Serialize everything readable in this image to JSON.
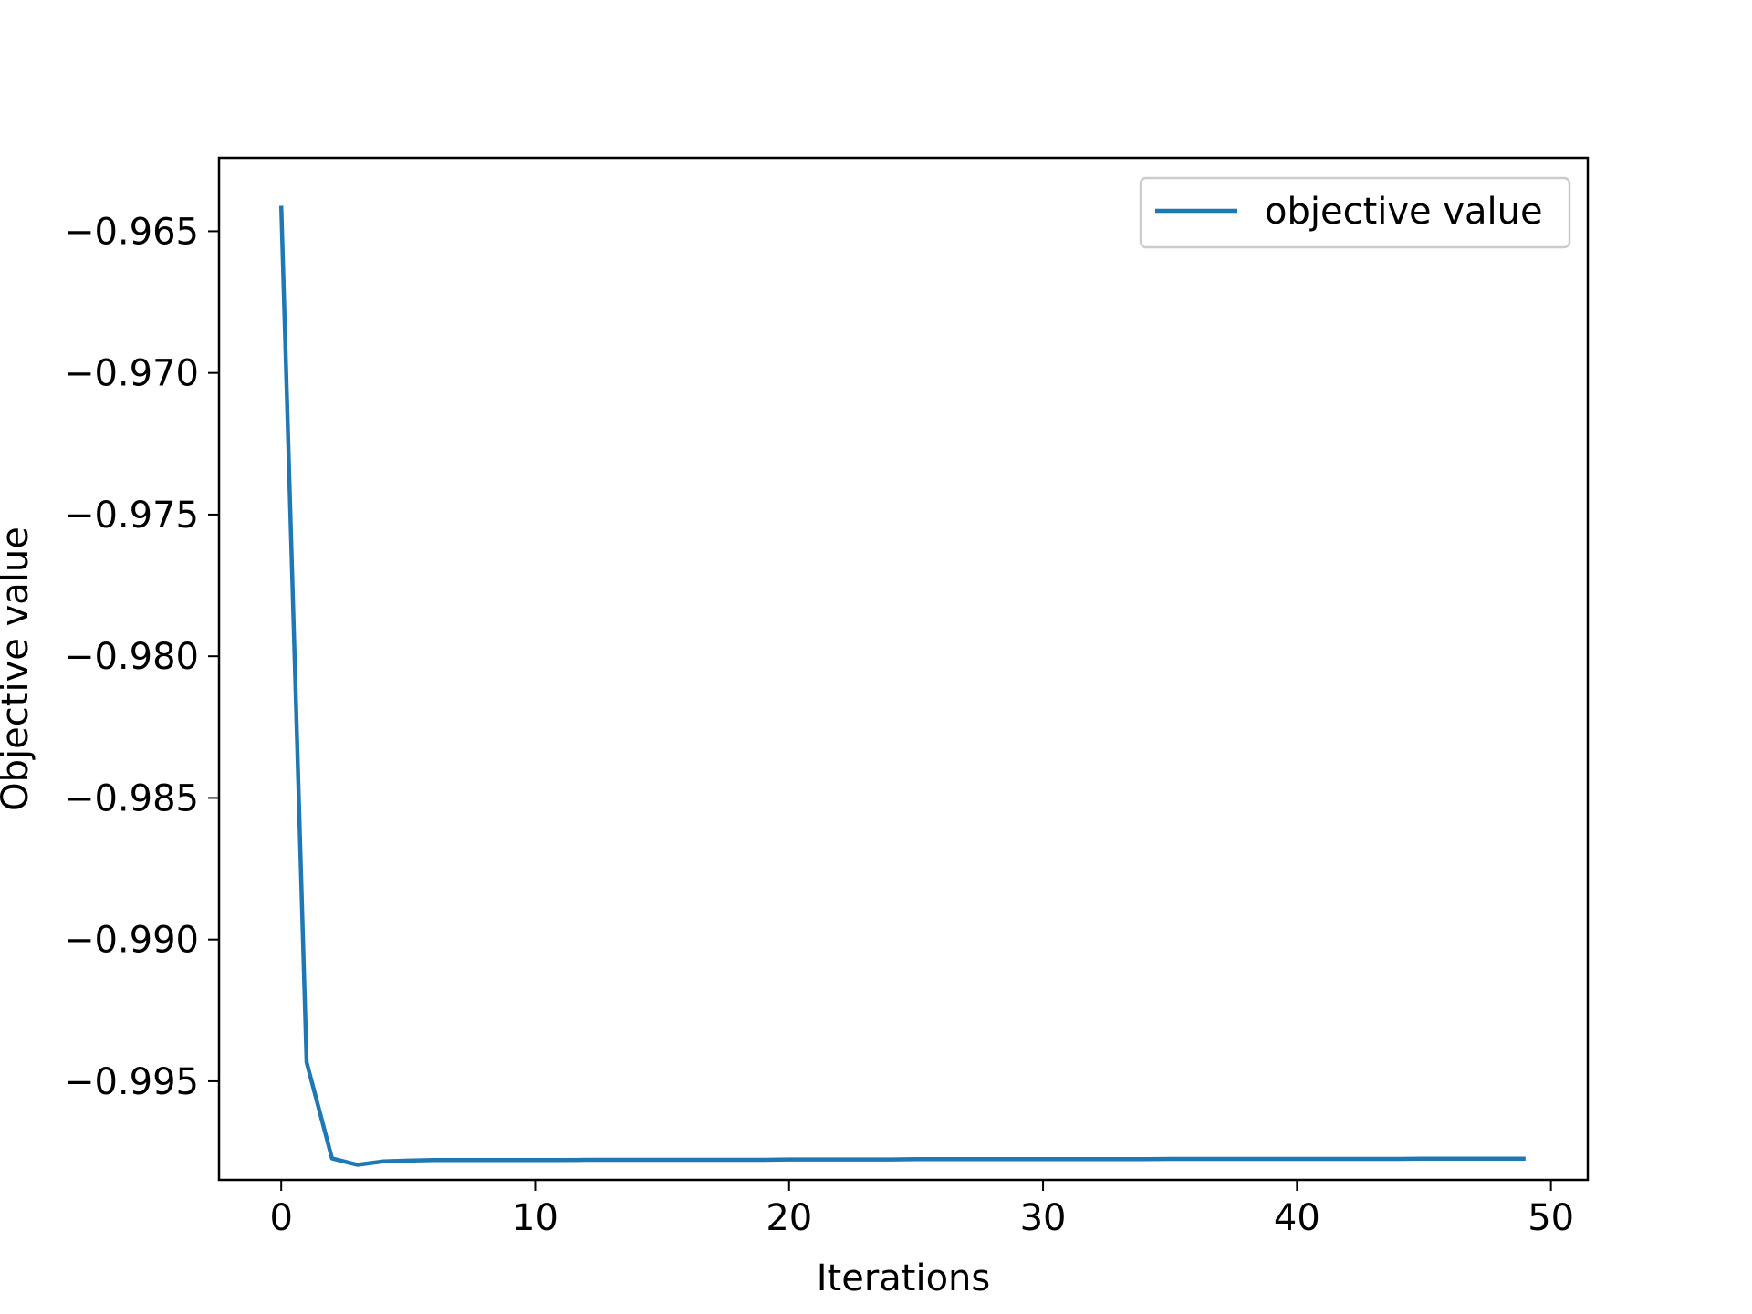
{
  "chart_data": {
    "type": "line",
    "xlabel": "Iterations",
    "ylabel": "Objective value",
    "xlim": [
      -2.45,
      51.45
    ],
    "ylim": [
      -0.99848,
      -0.96241
    ],
    "x_ticks": [
      0,
      10,
      20,
      30,
      40,
      50
    ],
    "x_tick_labels": [
      "0",
      "10",
      "20",
      "30",
      "40",
      "50"
    ],
    "y_ticks": [
      -0.965,
      -0.97,
      -0.975,
      -0.98,
      -0.985,
      -0.99,
      -0.995
    ],
    "y_tick_labels": [
      "−0.965",
      "−0.970",
      "−0.975",
      "−0.980",
      "−0.985",
      "−0.990",
      "−0.995"
    ],
    "grid": false,
    "legend_position": "upper right",
    "series": [
      {
        "name": "objective value",
        "color": "#1f77b4",
        "x": [
          0,
          1,
          2,
          3,
          4,
          5,
          6,
          7,
          8,
          9,
          10,
          11,
          12,
          13,
          14,
          15,
          16,
          17,
          18,
          19,
          20,
          21,
          22,
          23,
          24,
          25,
          26,
          27,
          28,
          29,
          30,
          31,
          32,
          33,
          34,
          35,
          36,
          37,
          38,
          39,
          40,
          41,
          42,
          43,
          44,
          45,
          46,
          47,
          48,
          49
        ],
        "y": [
          -0.9641,
          -0.99433,
          -0.99772,
          -0.99795,
          -0.99783,
          -0.9978,
          -0.99778,
          -0.99778,
          -0.99778,
          -0.99778,
          -0.99778,
          -0.99778,
          -0.99777,
          -0.99777,
          -0.99777,
          -0.99777,
          -0.99777,
          -0.99777,
          -0.99777,
          -0.99777,
          -0.99776,
          -0.99776,
          -0.99776,
          -0.99776,
          -0.99776,
          -0.99775,
          -0.99775,
          -0.99775,
          -0.99775,
          -0.99775,
          -0.99775,
          -0.99775,
          -0.99775,
          -0.99775,
          -0.99775,
          -0.99774,
          -0.99774,
          -0.99774,
          -0.99774,
          -0.99774,
          -0.99774,
          -0.99774,
          -0.99774,
          -0.99774,
          -0.99774,
          -0.99773,
          -0.99773,
          -0.99773,
          -0.99773,
          -0.99773
        ]
      }
    ]
  }
}
